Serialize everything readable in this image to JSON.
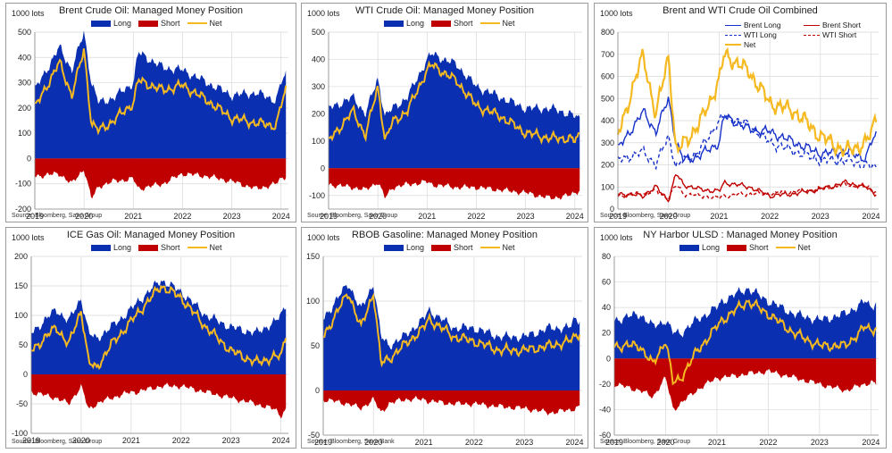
{
  "colors": {
    "long": "#0a2fb0",
    "short": "#c00000",
    "net": "#f5b921",
    "brent_long": "#1530c8",
    "wti_long": "#1530c8",
    "brent_short": "#c00000",
    "wti_short": "#c00000"
  },
  "panels": [
    {
      "id": "brent",
      "title": "Brent Crude Oil: Managed Money Position",
      "unit": "1000 lots",
      "source": "Source: Bloomberg, Saxo Group",
      "legend": [
        "Long",
        "Short",
        "Net"
      ]
    },
    {
      "id": "wti",
      "title": "WTI Crude Oil: Managed Money Position",
      "unit": "1000 lots",
      "source": "Source: Bloomberg, Saxo Group",
      "legend": [
        "Long",
        "Short",
        "Net"
      ]
    },
    {
      "id": "combined",
      "title": "Brent and WTI Crude Oil Combined",
      "unit": "1000 lots",
      "source": "Source: Bloomberg, Saxo Group",
      "legend": [
        "Brent Long",
        "Brent Short",
        "WTI Long",
        "WTI Short",
        "Net"
      ]
    },
    {
      "id": "gasoil",
      "title": "ICE Gas Oil: Managed Money Position",
      "unit": "1000 lots",
      "source": "Source: Bloomberg, Saxo Group",
      "legend": [
        "Long",
        "Short",
        "Net"
      ]
    },
    {
      "id": "rbob",
      "title": "RBOB Gasoline: Managed Money Position",
      "unit": "1000 lots",
      "source": "Source: Bloomberg, Saxo Bank",
      "legend": [
        "Long",
        "Short",
        "Net"
      ]
    },
    {
      "id": "ulsd",
      "title": "NY Harbor ULSD : Managed Money Position",
      "unit": "1000 lots",
      "source": "Source: Bloomberg, Saxo Group",
      "legend": [
        "Long",
        "Short",
        "Net"
      ]
    }
  ],
  "chart_data": [
    {
      "type": "area",
      "title": "Brent Crude Oil: Managed Money Position",
      "ylabel": "1000 lots",
      "x": [
        2019.0,
        2019.5,
        2019.75,
        2020.0,
        2020.15,
        2020.3,
        2020.6,
        2021.0,
        2021.1,
        2021.6,
        2022.0,
        2022.5,
        2023.0,
        2023.5,
        2023.9,
        2024.0,
        2024.1
      ],
      "xticks": [
        "2019",
        "2020",
        "2021",
        "2022",
        "2023",
        "2024"
      ],
      "ylim": [
        -200,
        500
      ],
      "yticks": [
        -200,
        -100,
        0,
        100,
        200,
        300,
        400,
        500
      ],
      "grid": true,
      "legend_position": "top",
      "series": [
        {
          "name": "Long",
          "values": [
            270,
            440,
            350,
            500,
            300,
            220,
            240,
            300,
            420,
            360,
            350,
            300,
            250,
            260,
            230,
            300,
            330
          ]
        },
        {
          "name": "Short",
          "values": [
            -70,
            -60,
            -100,
            -40,
            -160,
            -110,
            -90,
            -80,
            -120,
            -100,
            -60,
            -70,
            -90,
            -120,
            -100,
            -80,
            -70
          ]
        },
        {
          "name": "Net",
          "values": [
            200,
            380,
            250,
            430,
            140,
            110,
            150,
            220,
            310,
            270,
            290,
            230,
            160,
            140,
            130,
            210,
            270
          ]
        }
      ]
    },
    {
      "type": "area",
      "title": "WTI Crude Oil: Managed Money Position",
      "ylabel": "1000 lots",
      "x": [
        2019.0,
        2019.5,
        2019.75,
        2020.0,
        2020.15,
        2020.3,
        2020.6,
        2021.0,
        2021.1,
        2021.6,
        2022.0,
        2022.5,
        2023.0,
        2023.5,
        2023.9,
        2024.0,
        2024.1
      ],
      "xticks": [
        "2019",
        "2020",
        "2021",
        "2022",
        "2023",
        "2024"
      ],
      "ylim": [
        -150,
        500
      ],
      "yticks": [
        -100,
        0,
        100,
        200,
        300,
        400,
        500
      ],
      "grid": true,
      "legend_position": "top",
      "series": [
        {
          "name": "Long",
          "values": [
            220,
            260,
            200,
            330,
            190,
            220,
            260,
            400,
            420,
            380,
            300,
            260,
            220,
            220,
            200,
            190,
            180
          ]
        },
        {
          "name": "Short",
          "values": [
            -60,
            -70,
            -80,
            -50,
            -110,
            -70,
            -60,
            -50,
            -60,
            -70,
            -70,
            -80,
            -90,
            -110,
            -100,
            -90,
            -80
          ]
        },
        {
          "name": "Net",
          "values": [
            100,
            210,
            120,
            300,
            100,
            170,
            210,
            360,
            380,
            320,
            230,
            190,
            130,
            110,
            110,
            100,
            120
          ]
        }
      ]
    },
    {
      "type": "line",
      "title": "Brent and WTI Crude Oil Combined",
      "ylabel": "1000 lots",
      "x": [
        2019.0,
        2019.5,
        2019.75,
        2020.0,
        2020.15,
        2020.3,
        2020.6,
        2021.0,
        2021.1,
        2021.6,
        2022.0,
        2022.5,
        2023.0,
        2023.5,
        2023.9,
        2024.0,
        2024.1
      ],
      "xticks": [
        "2019",
        "2020",
        "2021",
        "2022",
        "2023",
        "2024"
      ],
      "ylim": [
        0,
        800
      ],
      "yticks": [
        0,
        100,
        200,
        300,
        400,
        500,
        600,
        700,
        800
      ],
      "grid": true,
      "legend_position": "top-right",
      "series": [
        {
          "name": "Brent Long",
          "values": [
            270,
            440,
            350,
            500,
            300,
            220,
            240,
            300,
            420,
            360,
            350,
            300,
            250,
            260,
            230,
            300,
            330
          ]
        },
        {
          "name": "Brent Short",
          "values": [
            70,
            60,
            100,
            40,
            160,
            110,
            90,
            80,
            120,
            100,
            60,
            70,
            90,
            120,
            100,
            80,
            70
          ]
        },
        {
          "name": "WTI Long",
          "values": [
            220,
            260,
            200,
            330,
            190,
            220,
            260,
            400,
            420,
            380,
            300,
            260,
            220,
            220,
            200,
            190,
            180
          ]
        },
        {
          "name": "WTI Short",
          "values": [
            60,
            70,
            80,
            50,
            110,
            70,
            60,
            50,
            60,
            70,
            70,
            80,
            90,
            110,
            100,
            90,
            80
          ]
        },
        {
          "name": "Net",
          "values": [
            330,
            700,
            420,
            700,
            250,
            300,
            380,
            580,
            700,
            620,
            480,
            440,
            330,
            260,
            300,
            340,
            420
          ]
        }
      ]
    },
    {
      "type": "area",
      "title": "ICE Gas Oil: Managed Money Position",
      "ylabel": "1000 lots",
      "x": [
        2019.0,
        2019.5,
        2019.75,
        2020.0,
        2020.15,
        2020.3,
        2020.6,
        2021.0,
        2021.1,
        2021.6,
        2022.0,
        2022.5,
        2023.0,
        2023.5,
        2023.9,
        2024.0,
        2024.1
      ],
      "xticks": [
        "2019",
        "2020",
        "2021",
        "2022",
        "2023",
        "2024"
      ],
      "ylim": [
        -100,
        200
      ],
      "yticks": [
        -100,
        -50,
        0,
        50,
        100,
        150,
        200
      ],
      "grid": true,
      "legend_position": "top",
      "series": [
        {
          "name": "Long",
          "values": [
            70,
            110,
            90,
            130,
            70,
            60,
            80,
            110,
            120,
            160,
            140,
            100,
            80,
            70,
            90,
            100,
            120
          ]
        },
        {
          "name": "Short",
          "values": [
            -30,
            -40,
            -50,
            -20,
            -60,
            -50,
            -40,
            -30,
            -30,
            -20,
            -20,
            -30,
            -40,
            -50,
            -60,
            -70,
            -60
          ]
        },
        {
          "name": "Net",
          "values": [
            40,
            80,
            50,
            110,
            20,
            10,
            50,
            90,
            100,
            150,
            130,
            80,
            40,
            20,
            30,
            30,
            70
          ]
        }
      ]
    },
    {
      "type": "area",
      "title": "RBOB Gasoline: Managed Money Position",
      "ylabel": "1000 lots",
      "x": [
        2019.0,
        2019.5,
        2019.75,
        2020.0,
        2020.15,
        2020.3,
        2020.6,
        2021.0,
        2021.1,
        2021.6,
        2022.0,
        2022.5,
        2023.0,
        2023.5,
        2023.9,
        2024.0,
        2024.1
      ],
      "xticks": [
        "2019",
        "2020",
        "2021",
        "2022",
        "2023",
        "2024"
      ],
      "ylim": [
        -50,
        150
      ],
      "yticks": [
        -50,
        0,
        50,
        100,
        150
      ],
      "grid": true,
      "legend_position": "top",
      "series": [
        {
          "name": "Long",
          "values": [
            80,
            120,
            90,
            120,
            60,
            50,
            60,
            80,
            90,
            70,
            70,
            60,
            60,
            70,
            70,
            80,
            80
          ]
        },
        {
          "name": "Short",
          "values": [
            -10,
            -15,
            -20,
            -10,
            -25,
            -15,
            -10,
            -10,
            -12,
            -15,
            -15,
            -18,
            -20,
            -25,
            -22,
            -20,
            -18
          ]
        },
        {
          "name": "Net",
          "values": [
            60,
            110,
            70,
            110,
            30,
            35,
            50,
            70,
            80,
            60,
            55,
            45,
            45,
            50,
            55,
            60,
            65
          ]
        }
      ]
    },
    {
      "type": "area",
      "title": "NY Harbor ULSD : Managed Money Position",
      "ylabel": "1000 lots",
      "x": [
        2019.0,
        2019.5,
        2019.75,
        2020.0,
        2020.15,
        2020.3,
        2020.6,
        2021.0,
        2021.1,
        2021.6,
        2022.0,
        2022.5,
        2023.0,
        2023.5,
        2023.9,
        2024.0,
        2024.1
      ],
      "xticks": [
        "2019",
        "2020",
        "2021",
        "2022",
        "2023",
        "2024"
      ],
      "ylim": [
        -60,
        80
      ],
      "yticks": [
        -60,
        -40,
        -20,
        0,
        20,
        40,
        60,
        80
      ],
      "grid": true,
      "legend_position": "top",
      "series": [
        {
          "name": "Long",
          "values": [
            30,
            35,
            25,
            30,
            20,
            20,
            30,
            40,
            45,
            55,
            45,
            35,
            30,
            35,
            45,
            40,
            45
          ]
        },
        {
          "name": "Short",
          "values": [
            -20,
            -25,
            -30,
            -15,
            -40,
            -35,
            -25,
            -15,
            -15,
            -12,
            -10,
            -15,
            -20,
            -25,
            -20,
            -18,
            -20
          ]
        },
        {
          "name": "Net",
          "values": [
            10,
            10,
            -5,
            15,
            -20,
            -15,
            5,
            25,
            30,
            45,
            35,
            20,
            10,
            10,
            25,
            22,
            25
          ]
        }
      ]
    }
  ]
}
